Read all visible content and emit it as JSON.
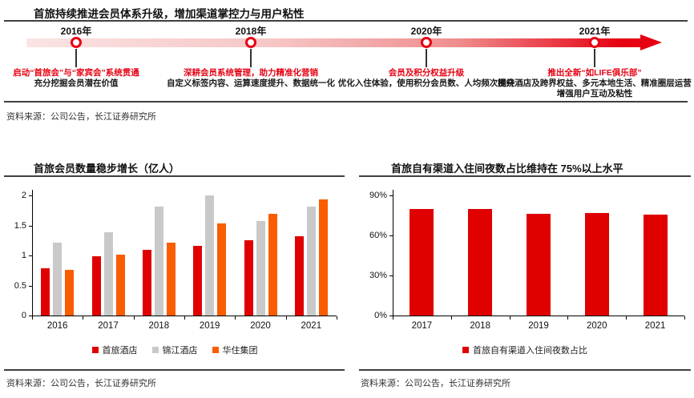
{
  "colors": {
    "brand_red": "#E60012",
    "bar_red": "#E00000",
    "bar_gray": "#C9C9C9",
    "bar_orange": "#FA5D00",
    "rule_gray": "#3F3F3F"
  },
  "timeline_section": {
    "title": "首旅持续推进会员体系升级，增加渠道掌控力与用户粘性",
    "source": "资料来源：公司公告，长江证券研究所",
    "milestones": [
      {
        "year": "2016年",
        "headline": "启动“首旅会”与“家宾会”系统贯通",
        "details": [
          "充分挖掘会员潜在价值"
        ]
      },
      {
        "year": "2018年",
        "headline": "深耕会员系统管理，助力精准化营销",
        "details": [
          "自定义标签内容、运算速度提升、数据统一化"
        ]
      },
      {
        "year": "2020年",
        "headline": "会员及积分权益升级",
        "details": [
          "优化入住体验，使用积分会员数、人均频次提升"
        ]
      },
      {
        "year": "2021年",
        "headline": "推出全新“如LIFE俱乐部”",
        "details": [
          "围绕酒店及跨界权益、多元本地生活、精准圈层运营",
          "增强用户互动及粘性"
        ]
      }
    ]
  },
  "left_figure": {
    "title": "首旅会员数量稳步增长（亿人）",
    "source": "资料来源：公司公告，长江证券研究所"
  },
  "right_figure": {
    "title": "首旅自有渠道入住间夜数占比维持在 75%以上水平",
    "source": "资料来源：公司公告，长江证券研究所"
  },
  "chart_data": [
    {
      "type": "bar",
      "title": "首旅会员数量稳步增长（亿人）",
      "categories": [
        "2016",
        "2017",
        "2018",
        "2019",
        "2020",
        "2021"
      ],
      "series": [
        {
          "name": "首旅酒店",
          "color": "#E00000",
          "values": [
            0.79,
            0.99,
            1.09,
            1.16,
            1.25,
            1.32
          ]
        },
        {
          "name": "锦江酒店",
          "color": "#C9C9C9",
          "values": [
            1.21,
            1.39,
            1.82,
            2.0,
            1.58,
            1.81
          ]
        },
        {
          "name": "华住集团",
          "color": "#FA5D00",
          "values": [
            0.76,
            1.02,
            1.21,
            1.53,
            1.69,
            1.93
          ]
        }
      ],
      "ylim": [
        0,
        2
      ],
      "yticks": [
        0,
        0.5,
        1,
        1.5,
        2
      ],
      "ytick_format": "number",
      "grid": false,
      "legend_position": "bottom"
    },
    {
      "type": "bar",
      "title": "首旅自有渠道入住间夜数占比维持在 75%以上水平",
      "categories": [
        "2017",
        "2018",
        "2019",
        "2020",
        "2021"
      ],
      "series": [
        {
          "name": "首旅自有渠道入住间夜数占比",
          "color": "#E00000",
          "values": [
            80,
            80,
            76,
            77,
            75.5
          ]
        }
      ],
      "ylim": [
        0,
        90
      ],
      "yticks": [
        0,
        30,
        60,
        90
      ],
      "ytick_format": "percent",
      "grid": false,
      "legend_position": "bottom"
    }
  ]
}
